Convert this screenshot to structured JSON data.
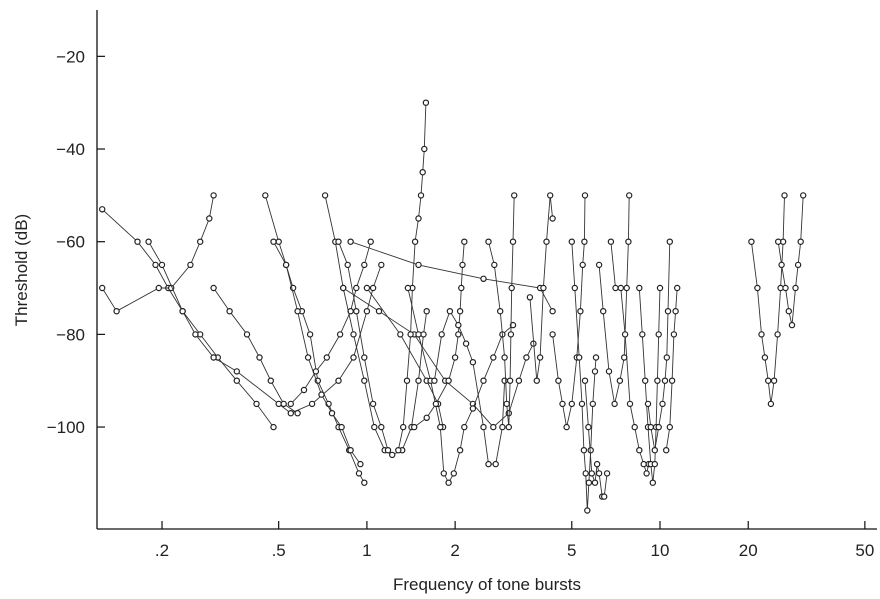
{
  "chart_data": {
    "type": "line",
    "xlabel": "Frequency of tone bursts",
    "ylabel": "Threshold (dB)",
    "x_scale": "log",
    "xlim": [
      0.12,
      55
    ],
    "ylim": [
      -122,
      -10
    ],
    "x_ticks": [
      0.2,
      0.5,
      1,
      2,
      5,
      10,
      20,
      50
    ],
    "x_tick_labels": [
      ".2",
      ".5",
      "1",
      "2",
      "5",
      "10",
      "20",
      "50"
    ],
    "y_ticks": [
      -20,
      -40,
      -60,
      -80,
      -100
    ],
    "y_tick_labels": [
      "−20",
      "−40",
      "−60",
      "−80",
      "−100"
    ],
    "grid": false,
    "legend": "none",
    "series": [
      {
        "points": [
          [
            0.125,
            -53
          ],
          [
            0.165,
            -60
          ],
          [
            0.19,
            -65
          ],
          [
            0.21,
            -70
          ],
          [
            0.235,
            -75
          ],
          [
            0.27,
            -80
          ],
          [
            0.31,
            -85
          ],
          [
            0.36,
            -90
          ],
          [
            0.42,
            -95
          ],
          [
            0.48,
            -100
          ]
        ]
      },
      {
        "points": [
          [
            0.125,
            -70
          ],
          [
            0.14,
            -75
          ],
          [
            0.195,
            -70
          ],
          [
            0.215,
            -70
          ],
          [
            0.25,
            -65
          ],
          [
            0.27,
            -60
          ],
          [
            0.29,
            -55
          ],
          [
            0.3,
            -50
          ]
        ]
      },
      {
        "points": [
          [
            0.18,
            -60
          ],
          [
            0.2,
            -65
          ],
          [
            0.235,
            -75
          ],
          [
            0.26,
            -80
          ],
          [
            0.3,
            -85
          ],
          [
            0.36,
            -88
          ],
          [
            0.5,
            -95
          ],
          [
            0.55,
            -97
          ],
          [
            0.65,
            -95
          ],
          [
            0.8,
            -90
          ],
          [
            0.9,
            -85
          ],
          [
            1.0,
            -75
          ],
          [
            1.05,
            -70
          ],
          [
            1.12,
            -65
          ]
        ]
      },
      {
        "points": [
          [
            0.3,
            -70
          ],
          [
            0.34,
            -75
          ],
          [
            0.39,
            -80
          ],
          [
            0.43,
            -85
          ],
          [
            0.47,
            -90
          ],
          [
            0.52,
            -95
          ],
          [
            0.58,
            -97
          ]
        ]
      },
      {
        "points": [
          [
            0.45,
            -50
          ],
          [
            0.5,
            -60
          ],
          [
            0.53,
            -65
          ],
          [
            0.56,
            -70
          ],
          [
            0.6,
            -75
          ],
          [
            0.64,
            -80
          ],
          [
            0.68,
            -90
          ],
          [
            0.74,
            -95
          ],
          [
            0.8,
            -100
          ],
          [
            0.87,
            -105
          ],
          [
            0.94,
            -110
          ],
          [
            0.98,
            -112
          ]
        ]
      },
      {
        "points": [
          [
            0.48,
            -60
          ],
          [
            0.53,
            -65
          ],
          [
            0.58,
            -75
          ],
          [
            0.63,
            -85
          ],
          [
            0.7,
            -93
          ],
          [
            0.76,
            -97
          ],
          [
            0.82,
            -100
          ],
          [
            0.88,
            -105
          ],
          [
            0.95,
            -108
          ]
        ]
      },
      {
        "points": [
          [
            0.55,
            -95
          ],
          [
            0.61,
            -92
          ],
          [
            0.67,
            -88
          ],
          [
            0.73,
            -85
          ],
          [
            0.81,
            -80
          ],
          [
            0.88,
            -75
          ],
          [
            0.92,
            -70
          ],
          [
            0.98,
            -65
          ],
          [
            1.03,
            -60
          ]
        ]
      },
      {
        "points": [
          [
            0.72,
            -50
          ],
          [
            0.78,
            -60
          ],
          [
            0.83,
            -70
          ],
          [
            0.9,
            -80
          ],
          [
            0.98,
            -90
          ],
          [
            1.06,
            -100
          ],
          [
            1.15,
            -105
          ],
          [
            1.22,
            -106
          ],
          [
            1.32,
            -105
          ],
          [
            1.42,
            -100
          ],
          [
            1.5,
            -90
          ],
          [
            1.56,
            -80
          ],
          [
            1.6,
            -75
          ]
        ]
      },
      {
        "points": [
          [
            0.8,
            -60
          ],
          [
            0.86,
            -65
          ],
          [
            0.92,
            -75
          ],
          [
            0.98,
            -85
          ],
          [
            1.05,
            -95
          ],
          [
            1.12,
            -100
          ],
          [
            1.18,
            -105
          ]
        ]
      },
      {
        "points": [
          [
            0.83,
            -70
          ],
          [
            1.1,
            -75
          ],
          [
            1.45,
            -80
          ],
          [
            1.85,
            -90
          ],
          [
            2.3,
            -95
          ],
          [
            2.7,
            -100
          ],
          [
            3.05,
            -97
          ],
          [
            3.3,
            -90
          ],
          [
            3.5,
            -85
          ],
          [
            3.7,
            -82
          ]
        ]
      },
      {
        "points": [
          [
            0.88,
            -60
          ],
          [
            1.5,
            -65
          ],
          [
            2.5,
            -68
          ],
          [
            3.9,
            -70
          ],
          [
            4.3,
            -75
          ]
        ]
      },
      {
        "points": [
          [
            1.0,
            -70
          ],
          [
            1.3,
            -80
          ],
          [
            1.6,
            -90
          ],
          [
            1.75,
            -95
          ],
          [
            1.82,
            -100
          ]
        ]
      },
      {
        "points": [
          [
            1.28,
            -105
          ],
          [
            1.33,
            -100
          ],
          [
            1.37,
            -90
          ],
          [
            1.41,
            -80
          ],
          [
            1.43,
            -70
          ],
          [
            1.46,
            -60
          ],
          [
            1.5,
            -55
          ],
          [
            1.53,
            -50
          ],
          [
            1.55,
            -45
          ],
          [
            1.57,
            -40
          ],
          [
            1.59,
            -30
          ]
        ]
      },
      {
        "points": [
          [
            1.38,
            -70
          ],
          [
            1.5,
            -80
          ],
          [
            1.65,
            -90
          ],
          [
            1.78,
            -100
          ],
          [
            1.83,
            -110
          ],
          [
            1.9,
            -112
          ],
          [
            1.98,
            -110
          ],
          [
            2.08,
            -105
          ],
          [
            2.15,
            -100
          ],
          [
            2.3,
            -96
          ],
          [
            2.5,
            -90
          ],
          [
            2.7,
            -85
          ],
          [
            2.9,
            -80
          ],
          [
            3.15,
            -78
          ]
        ]
      },
      {
        "points": [
          [
            1.45,
            -100
          ],
          [
            1.6,
            -98
          ],
          [
            1.72,
            -95
          ],
          [
            1.9,
            -90
          ],
          [
            2.0,
            -85
          ],
          [
            2.05,
            -80
          ],
          [
            2.08,
            -75
          ],
          [
            2.1,
            -70
          ],
          [
            2.12,
            -65
          ],
          [
            2.15,
            -60
          ]
        ]
      },
      {
        "points": [
          [
            1.7,
            -90
          ],
          [
            1.8,
            -80
          ],
          [
            1.92,
            -75
          ],
          [
            2.05,
            -78
          ],
          [
            2.18,
            -82
          ],
          [
            2.3,
            -86
          ],
          [
            2.5,
            -100
          ],
          [
            2.6,
            -108
          ],
          [
            2.75,
            -108
          ],
          [
            2.9,
            -100
          ],
          [
            2.95,
            -90
          ]
        ]
      },
      {
        "points": [
          [
            2.6,
            -60
          ],
          [
            2.72,
            -65
          ],
          [
            2.85,
            -75
          ],
          [
            2.95,
            -85
          ],
          [
            3.0,
            -95
          ],
          [
            3.05,
            -100
          ],
          [
            3.08,
            -90
          ],
          [
            3.1,
            -80
          ],
          [
            3.12,
            -70
          ],
          [
            3.15,
            -60
          ],
          [
            3.18,
            -50
          ]
        ]
      },
      {
        "points": [
          [
            3.6,
            -72
          ],
          [
            3.8,
            -90
          ],
          [
            3.9,
            -85
          ],
          [
            4.0,
            -70
          ],
          [
            4.1,
            -60
          ],
          [
            4.22,
            -50
          ],
          [
            4.3,
            -55
          ]
        ]
      },
      {
        "points": [
          [
            4.3,
            -80
          ],
          [
            4.5,
            -90
          ],
          [
            4.65,
            -95
          ],
          [
            4.8,
            -100
          ],
          [
            5.0,
            -95
          ],
          [
            5.2,
            -85
          ],
          [
            5.35,
            -75
          ],
          [
            5.45,
            -65
          ],
          [
            5.52,
            -60
          ],
          [
            5.55,
            -50
          ]
        ]
      },
      {
        "points": [
          [
            5.0,
            -60
          ],
          [
            5.12,
            -70
          ],
          [
            5.3,
            -85
          ],
          [
            5.42,
            -95
          ],
          [
            5.5,
            -105
          ],
          [
            5.58,
            -110
          ],
          [
            5.65,
            -118
          ],
          [
            5.72,
            -112
          ],
          [
            5.8,
            -105
          ],
          [
            5.9,
            -95
          ],
          [
            6.0,
            -88
          ],
          [
            6.05,
            -85
          ]
        ]
      },
      {
        "points": [
          [
            5.55,
            -90
          ],
          [
            5.7,
            -100
          ],
          [
            5.85,
            -110
          ],
          [
            6.0,
            -112
          ],
          [
            6.1,
            -108
          ],
          [
            6.2,
            -110
          ],
          [
            6.35,
            -115
          ],
          [
            6.45,
            -115
          ],
          [
            6.6,
            -110
          ]
        ]
      },
      {
        "points": [
          [
            6.2,
            -65
          ],
          [
            6.4,
            -75
          ],
          [
            6.7,
            -88
          ],
          [
            7.0,
            -95
          ],
          [
            7.3,
            -90
          ],
          [
            7.55,
            -85
          ],
          [
            7.7,
            -70
          ],
          [
            7.8,
            -60
          ],
          [
            7.85,
            -50
          ]
        ]
      },
      {
        "points": [
          [
            6.8,
            -60
          ],
          [
            7.05,
            -70
          ],
          [
            7.35,
            -70
          ],
          [
            7.6,
            -80
          ],
          [
            7.9,
            -95
          ],
          [
            8.2,
            -100
          ],
          [
            8.5,
            -105
          ],
          [
            8.8,
            -108
          ],
          [
            9.0,
            -110
          ],
          [
            9.15,
            -108
          ]
        ]
      },
      {
        "points": [
          [
            8.5,
            -70
          ],
          [
            8.7,
            -80
          ],
          [
            8.9,
            -90
          ],
          [
            9.1,
            -100
          ],
          [
            9.3,
            -108
          ],
          [
            9.45,
            -112
          ],
          [
            9.6,
            -108
          ],
          [
            9.7,
            -100
          ],
          [
            9.8,
            -90
          ],
          [
            9.9,
            -80
          ],
          [
            10.0,
            -70
          ]
        ]
      },
      {
        "points": [
          [
            9.1,
            -95
          ],
          [
            9.3,
            -100
          ],
          [
            9.6,
            -105
          ],
          [
            9.9,
            -100
          ],
          [
            10.2,
            -95
          ],
          [
            10.4,
            -90
          ],
          [
            10.55,
            -85
          ],
          [
            10.65,
            -75
          ],
          [
            10.8,
            -60
          ]
        ]
      },
      {
        "points": [
          [
            10.5,
            -105
          ],
          [
            10.8,
            -100
          ],
          [
            11.0,
            -90
          ],
          [
            11.15,
            -80
          ],
          [
            11.3,
            -75
          ],
          [
            11.45,
            -70
          ]
        ]
      },
      {
        "points": [
          [
            20.5,
            -60
          ],
          [
            21.5,
            -70
          ],
          [
            22.2,
            -80
          ],
          [
            22.8,
            -85
          ],
          [
            23.4,
            -90
          ],
          [
            23.9,
            -95
          ],
          [
            24.5,
            -90
          ],
          [
            25.2,
            -80
          ],
          [
            25.8,
            -70
          ],
          [
            26.3,
            -60
          ],
          [
            26.6,
            -50
          ]
        ]
      },
      {
        "points": [
          [
            25.3,
            -60
          ],
          [
            26.0,
            -65
          ],
          [
            26.8,
            -70
          ],
          [
            27.5,
            -75
          ],
          [
            28.2,
            -78
          ],
          [
            29.0,
            -70
          ],
          [
            29.6,
            -65
          ],
          [
            30.2,
            -60
          ],
          [
            30.8,
            -50
          ]
        ]
      }
    ]
  }
}
